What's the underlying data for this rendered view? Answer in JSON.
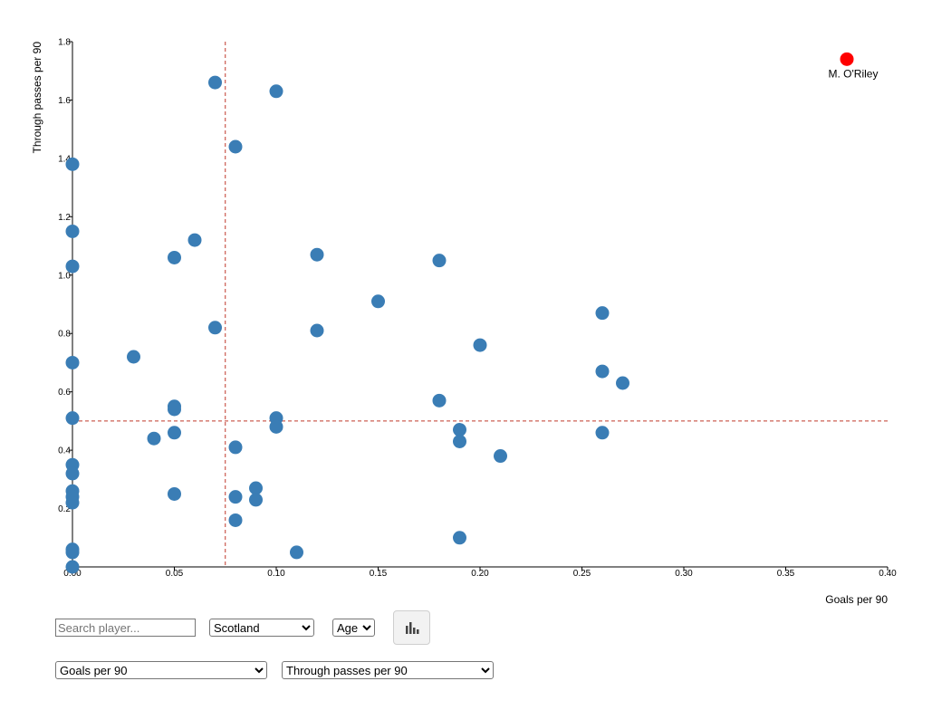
{
  "chart_data": {
    "type": "scatter",
    "xlabel": "Goals per 90",
    "ylabel": "Through passes per 90",
    "xlim": [
      0,
      0.4
    ],
    "ylim": [
      0,
      1.8
    ],
    "x_ticks": [
      "0.00",
      "0.05",
      "0.10",
      "0.15",
      "0.20",
      "0.25",
      "0.30",
      "0.35",
      "0.40"
    ],
    "y_ticks": [
      "0",
      "0.2",
      "0.4",
      "0.6",
      "0.8",
      "1.0",
      "1.2",
      "1.4",
      "1.6",
      "1.8"
    ],
    "grid": false,
    "reference_lines": {
      "x": 0.075,
      "y": 0.5,
      "color": "#c0392b"
    },
    "point_color": "#3a7db5",
    "highlight_color": "#ff0000",
    "highlight": {
      "x": 0.38,
      "y": 1.74,
      "label": "M. O'Riley"
    },
    "points": [
      {
        "x": 0.0,
        "y": 1.38
      },
      {
        "x": 0.0,
        "y": 1.15
      },
      {
        "x": 0.0,
        "y": 1.03
      },
      {
        "x": 0.0,
        "y": 0.7
      },
      {
        "x": 0.0,
        "y": 0.51
      },
      {
        "x": 0.0,
        "y": 0.35
      },
      {
        "x": 0.0,
        "y": 0.32
      },
      {
        "x": 0.0,
        "y": 0.26
      },
      {
        "x": 0.0,
        "y": 0.24
      },
      {
        "x": 0.0,
        "y": 0.22
      },
      {
        "x": 0.0,
        "y": 0.06
      },
      {
        "x": 0.0,
        "y": 0.05
      },
      {
        "x": 0.0,
        "y": 0.0
      },
      {
        "x": 0.03,
        "y": 0.72
      },
      {
        "x": 0.04,
        "y": 0.44
      },
      {
        "x": 0.05,
        "y": 1.06
      },
      {
        "x": 0.05,
        "y": 0.55
      },
      {
        "x": 0.05,
        "y": 0.54
      },
      {
        "x": 0.05,
        "y": 0.46
      },
      {
        "x": 0.05,
        "y": 0.25
      },
      {
        "x": 0.06,
        "y": 1.12
      },
      {
        "x": 0.07,
        "y": 1.66
      },
      {
        "x": 0.07,
        "y": 0.82
      },
      {
        "x": 0.08,
        "y": 1.44
      },
      {
        "x": 0.08,
        "y": 0.41
      },
      {
        "x": 0.08,
        "y": 0.24
      },
      {
        "x": 0.08,
        "y": 0.16
      },
      {
        "x": 0.09,
        "y": 0.27
      },
      {
        "x": 0.09,
        "y": 0.23
      },
      {
        "x": 0.1,
        "y": 1.63
      },
      {
        "x": 0.1,
        "y": 0.51
      },
      {
        "x": 0.1,
        "y": 0.48
      },
      {
        "x": 0.11,
        "y": 0.05
      },
      {
        "x": 0.12,
        "y": 1.07
      },
      {
        "x": 0.12,
        "y": 0.81
      },
      {
        "x": 0.15,
        "y": 0.91
      },
      {
        "x": 0.18,
        "y": 1.05
      },
      {
        "x": 0.18,
        "y": 0.57
      },
      {
        "x": 0.19,
        "y": 0.47
      },
      {
        "x": 0.19,
        "y": 0.43
      },
      {
        "x": 0.19,
        "y": 0.1
      },
      {
        "x": 0.2,
        "y": 0.76
      },
      {
        "x": 0.21,
        "y": 0.38
      },
      {
        "x": 0.26,
        "y": 0.87
      },
      {
        "x": 0.26,
        "y": 0.67
      },
      {
        "x": 0.26,
        "y": 0.46
      },
      {
        "x": 0.27,
        "y": 0.63
      }
    ]
  },
  "controls": {
    "search": {
      "placeholder": "Search player..."
    },
    "country": {
      "selected": "Scotland"
    },
    "age": {
      "selected": "Age"
    },
    "chart_button_icon": "bar-chart-icon",
    "x_metric": {
      "selected": "Goals per 90"
    },
    "y_metric": {
      "selected": "Through passes per 90"
    }
  }
}
